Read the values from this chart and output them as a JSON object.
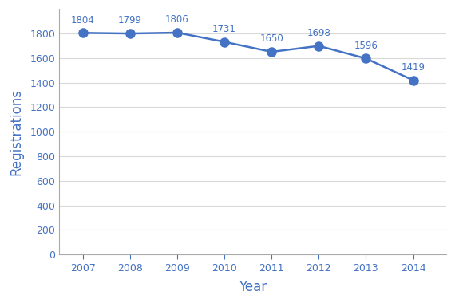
{
  "years": [
    2007,
    2008,
    2009,
    2010,
    2011,
    2012,
    2013,
    2014
  ],
  "values": [
    1804,
    1799,
    1806,
    1731,
    1650,
    1698,
    1596,
    1419
  ],
  "line_color": "#4472c4",
  "marker_color": "#4472c4",
  "xlabel": "Year",
  "ylabel": "Registrations",
  "ylim": [
    0,
    2000
  ],
  "yticks": [
    0,
    200,
    400,
    600,
    800,
    1000,
    1200,
    1400,
    1600,
    1800
  ],
  "grid_color": "#d9d9d9",
  "background_color": "#ffffff",
  "label_fontsize": 8.5,
  "axis_label_fontsize": 12,
  "marker_size": 8,
  "line_width": 1.8,
  "tick_label_color": "#4472c4",
  "axis_label_color": "#4472c4"
}
